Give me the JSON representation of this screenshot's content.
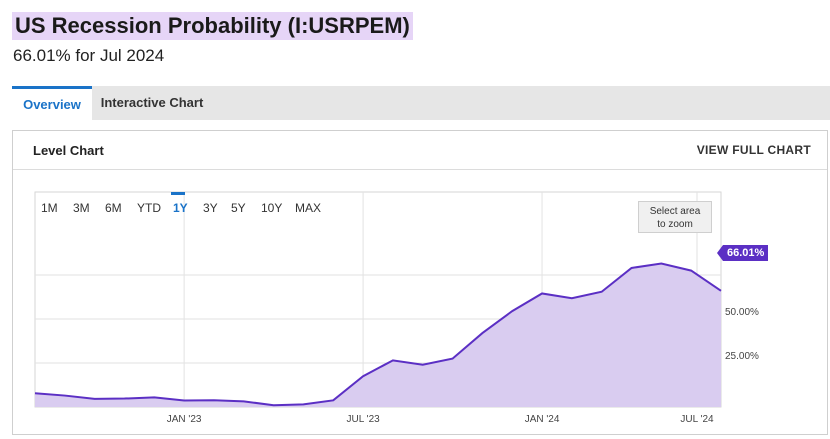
{
  "header": {
    "title": "US Recession Probability (I:USRPEM)",
    "subtitle": "66.01% for Jul 2024"
  },
  "tabs": [
    {
      "label": "Overview",
      "active": true
    },
    {
      "label": "Interactive Chart",
      "active": false
    }
  ],
  "panel": {
    "title": "Level Chart",
    "link": "VIEW FULL CHART"
  },
  "range_buttons": [
    "1M",
    "3M",
    "6M",
    "YTD",
    "1Y",
    "3Y",
    "5Y",
    "10Y",
    "MAX"
  ],
  "active_range": "1Y",
  "zoom_hint": [
    "Select area",
    "to zoom"
  ],
  "colors": {
    "line": "#5b2fc4",
    "fill": "#d9ccf0",
    "accent": "#1a73c8",
    "title_highlight": "#e6d5f7"
  },
  "chart_data": {
    "type": "area",
    "x": [
      "2022-08",
      "2022-09",
      "2022-10",
      "2022-11",
      "2022-12",
      "2023-01",
      "2023-02",
      "2023-03",
      "2023-04",
      "2023-05",
      "2023-06",
      "2023-07",
      "2023-08",
      "2023-09",
      "2023-10",
      "2023-11",
      "2023-12",
      "2024-01",
      "2024-02",
      "2024-03",
      "2024-04",
      "2024-05",
      "2024-06",
      "2024-07"
    ],
    "values": [
      7.8,
      6.5,
      4.6,
      4.8,
      5.5,
      3.7,
      3.8,
      3.2,
      1.0,
      1.5,
      3.8,
      17.5,
      26.5,
      24.0,
      27.5,
      42.0,
      54.5,
      64.5,
      61.8,
      65.5,
      79.0,
      81.5,
      77.5,
      66.01
    ],
    "x_ticks": [
      "JAN '23",
      "JUL '23",
      "JAN '24",
      "JUL '24"
    ],
    "y_ticks": [
      "25.00%",
      "50.00%"
    ],
    "last_value_label": "66.01%",
    "grid": true
  }
}
